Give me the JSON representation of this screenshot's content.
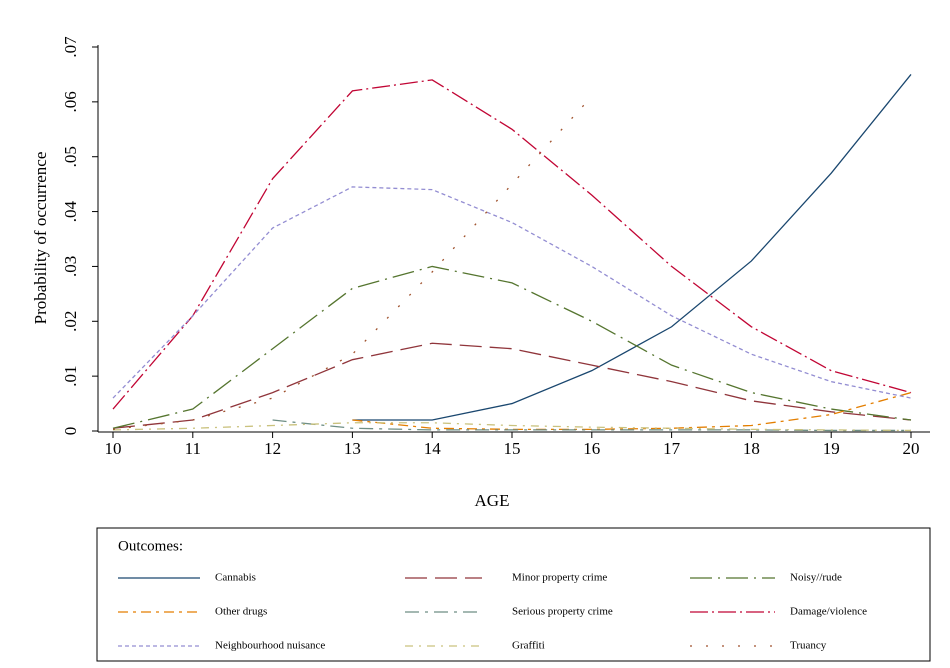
{
  "chart_data": {
    "type": "line",
    "x_label": "AGE",
    "y_label": "Probability of occurrence",
    "legend_title": "Outcomes:",
    "x": [
      10,
      11,
      12,
      13,
      14,
      15,
      16,
      17,
      18,
      19,
      20
    ],
    "xlim": [
      10,
      20
    ],
    "xticks": [
      10,
      11,
      12,
      13,
      14,
      15,
      16,
      17,
      18,
      19,
      20
    ],
    "ylim": [
      0,
      0.07
    ],
    "yticks": [
      {
        "value": 0,
        "label": "0"
      },
      {
        "value": 0.01,
        "label": ".01"
      },
      {
        "value": 0.02,
        "label": ".02"
      },
      {
        "value": 0.03,
        "label": ".03"
      },
      {
        "value": 0.04,
        "label": ".04"
      },
      {
        "value": 0.05,
        "label": ".05"
      },
      {
        "value": 0.06,
        "label": ".06"
      },
      {
        "value": 0.07,
        "label": ".07"
      }
    ],
    "grid": false,
    "series": [
      {
        "name": "Cannabis",
        "color": "#1a476f",
        "dash": "none",
        "values": [
          null,
          null,
          null,
          0.002,
          0.002,
          0.005,
          0.011,
          0.019,
          0.031,
          0.047,
          0.065
        ]
      },
      {
        "name": "Minor property crime",
        "color": "#90353b",
        "dash": "22 8",
        "values": [
          0.0005,
          0.002,
          0.007,
          0.013,
          0.016,
          0.015,
          0.012,
          0.009,
          0.0055,
          0.0035,
          0.002
        ]
      },
      {
        "name": "Noisy//rude",
        "color": "#55752f",
        "dash": "22 6 2 6",
        "values": [
          0.0005,
          0.004,
          0.015,
          0.026,
          0.03,
          0.027,
          0.02,
          0.012,
          0.007,
          0.004,
          0.002
        ]
      },
      {
        "name": "Other drugs",
        "color": "#e37e00",
        "dash": "10 5 3 5",
        "values": [
          null,
          null,
          null,
          0.002,
          0.0005,
          0.0003,
          0.0003,
          0.0005,
          0.001,
          0.003,
          0.007
        ]
      },
      {
        "name": "Serious property crime",
        "color": "#6e8e84",
        "dash": "14 6 3 6",
        "values": [
          null,
          null,
          0.002,
          0.0005,
          0.0002,
          0.0002,
          0.0002,
          0.0002,
          0.0002,
          0.0001,
          0.0001
        ]
      },
      {
        "name": "Damage/violence",
        "color": "#c10534",
        "dash": "18 4 2 4",
        "values": [
          0.004,
          0.021,
          0.046,
          0.062,
          0.064,
          0.055,
          0.043,
          0.03,
          0.019,
          0.011,
          0.007
        ]
      },
      {
        "name": "Neighbourhood nuisance",
        "color": "#938dd2",
        "dash": "4 3",
        "values": [
          0.006,
          0.021,
          0.037,
          0.0445,
          0.044,
          0.038,
          0.03,
          0.021,
          0.014,
          0.009,
          0.006
        ]
      },
      {
        "name": "Graffiti",
        "color": "#cac27e",
        "dash": "8 6 2 6",
        "values": [
          0.0002,
          0.0005,
          0.001,
          0.0015,
          0.0015,
          0.001,
          0.0007,
          0.0005,
          0.0003,
          0.0002,
          0.0001
        ]
      },
      {
        "name": "Truancy",
        "color": "#a0522d",
        "dash": "2 14",
        "values": [
          0.0003,
          0.002,
          0.006,
          0.014,
          0.029,
          0.045,
          0.061,
          null,
          null,
          null,
          null
        ]
      }
    ]
  }
}
